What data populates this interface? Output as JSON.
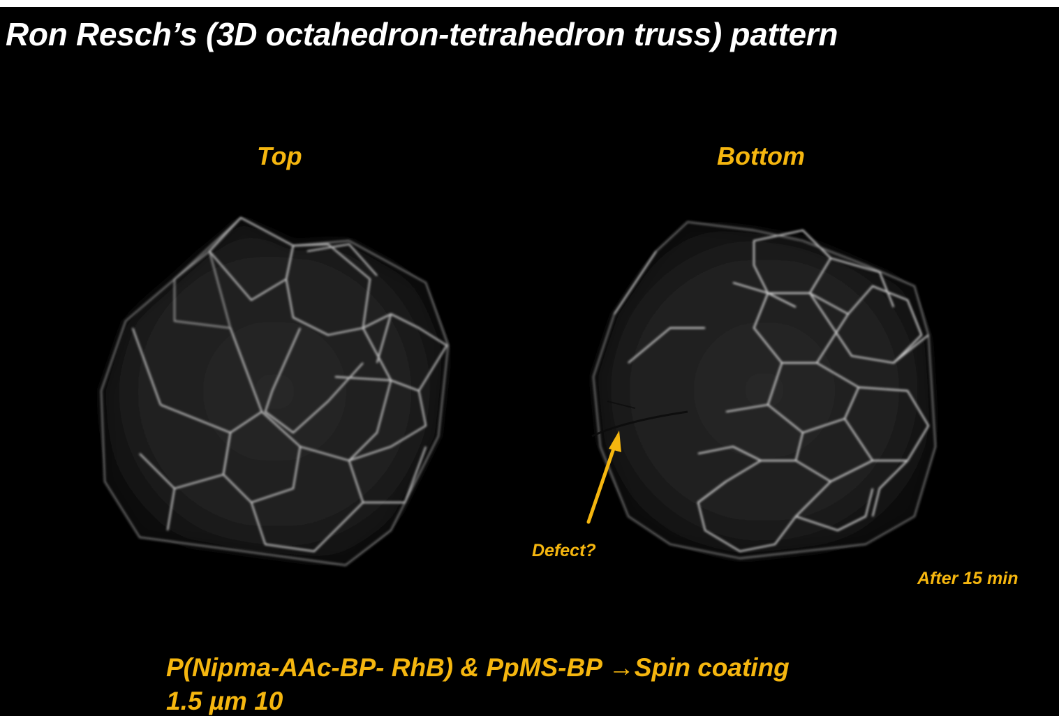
{
  "header": {
    "title": "Ron Resch’s (3D octahedron-tetrahedron truss) pattern"
  },
  "panels": [
    {
      "label": "Top",
      "icon": "folded-truss-film-top-view"
    },
    {
      "label": "Bottom",
      "icon": "folded-truss-film-bottom-view"
    }
  ],
  "annotations": {
    "defect": "Defect?",
    "time": "After 15 min"
  },
  "caption": {
    "line1": "P(Nipma-AAc-BP- RhB) & PpMS-BP →Spin coating",
    "line2": "1.5 µm 10"
  },
  "colors": {
    "background": "#000000",
    "title": "#FFFFFF",
    "accent": "#F5B60F",
    "film": "#D8D8D8"
  }
}
